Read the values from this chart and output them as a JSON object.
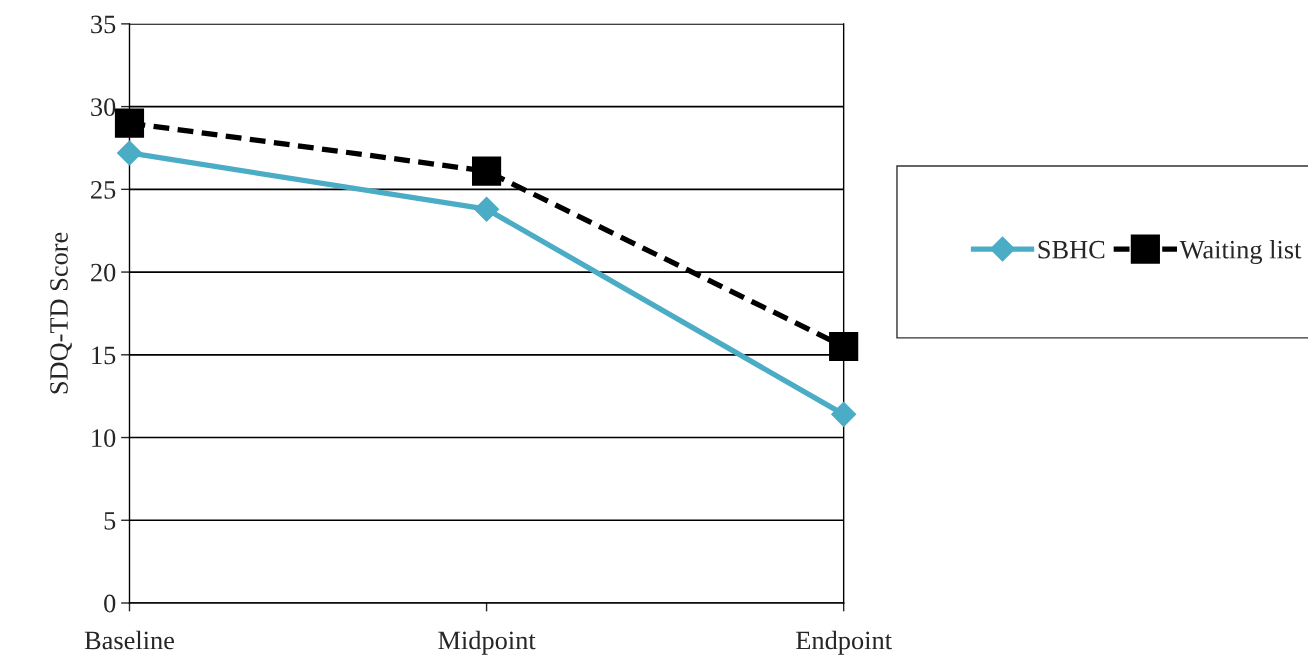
{
  "chart_data": {
    "type": "line",
    "ylabel": "SDQ-TD Score",
    "categories": [
      "Baseline",
      "Midpoint",
      "Endpoint"
    ],
    "series": [
      {
        "name": "SBHC",
        "color": "#4bacc6",
        "values": [
          27.2,
          23.8,
          11.4
        ],
        "marker": "diamond",
        "line_style": "solid"
      },
      {
        "name": "Waiting list",
        "color": "#000000",
        "values": [
          29.0,
          26.1,
          15.5
        ],
        "marker": "square",
        "line_style": "dashed"
      }
    ],
    "ylim": [
      0,
      35
    ],
    "yticks": [
      0,
      5,
      10,
      15,
      20,
      25,
      30,
      35
    ],
    "grid": "y",
    "legend": "right"
  }
}
